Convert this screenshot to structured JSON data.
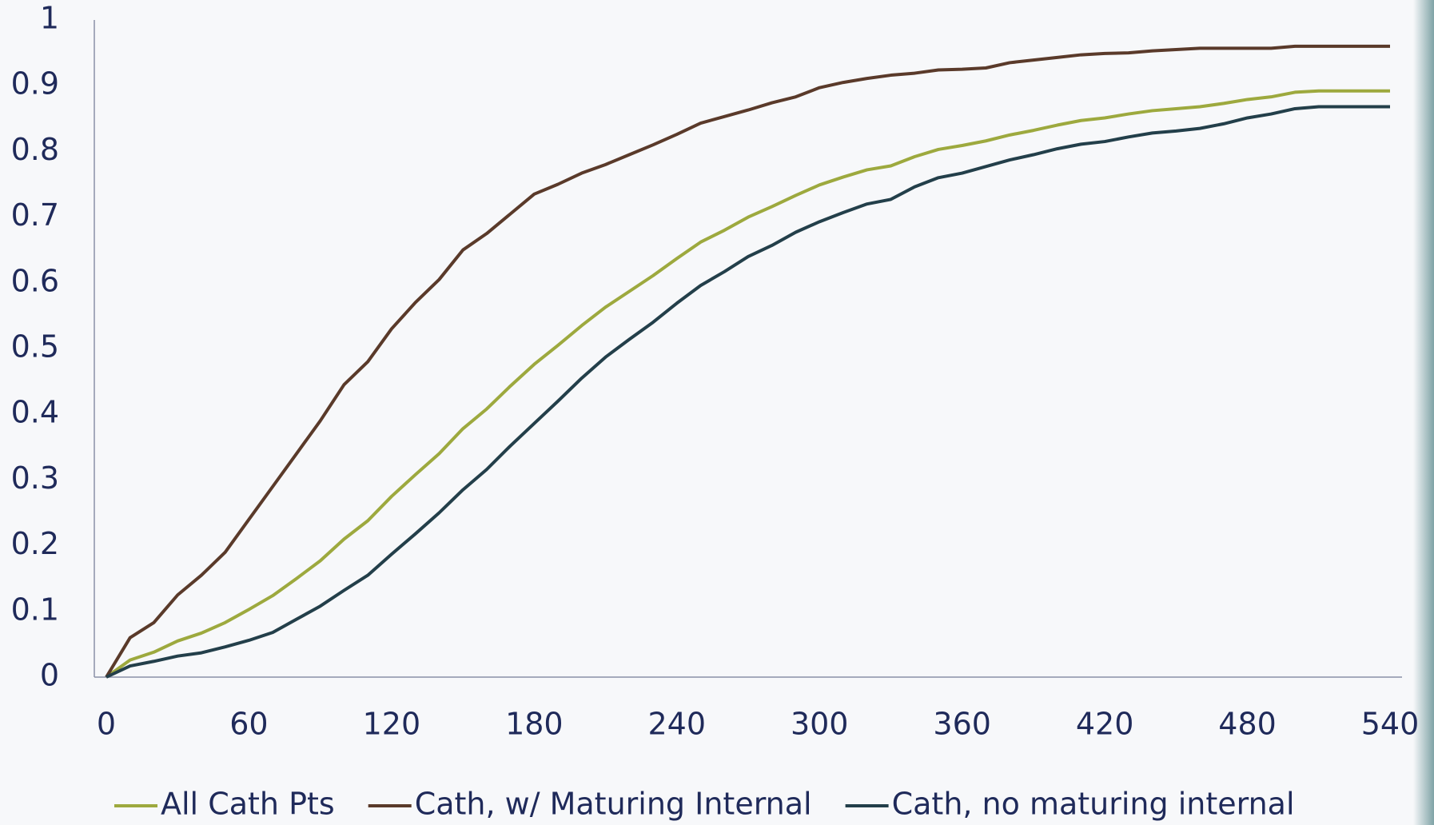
{
  "chart_data": {
    "type": "line",
    "x": [
      0,
      10,
      20,
      30,
      40,
      50,
      60,
      70,
      80,
      90,
      100,
      110,
      120,
      130,
      140,
      150,
      160,
      170,
      180,
      190,
      200,
      210,
      220,
      230,
      240,
      250,
      260,
      270,
      280,
      290,
      300,
      310,
      320,
      330,
      340,
      350,
      360,
      370,
      380,
      390,
      400,
      410,
      420,
      430,
      440,
      450,
      460,
      470,
      480,
      490,
      500,
      510,
      520,
      530,
      540
    ],
    "series": [
      {
        "name": "All Cath Pts",
        "color": "#9da93e",
        "values": [
          0,
          0.026,
          0.038,
          0.055,
          0.067,
          0.083,
          0.103,
          0.124,
          0.15,
          0.177,
          0.21,
          0.238,
          0.275,
          0.308,
          0.34,
          0.378,
          0.408,
          0.443,
          0.476,
          0.505,
          0.535,
          0.563,
          0.587,
          0.611,
          0.637,
          0.662,
          0.68,
          0.7,
          0.716,
          0.733,
          0.749,
          0.761,
          0.772,
          0.778,
          0.792,
          0.803,
          0.809,
          0.816,
          0.825,
          0.832,
          0.84,
          0.847,
          0.851,
          0.857,
          0.862,
          0.865,
          0.868,
          0.873,
          0.879,
          0.883,
          0.89,
          0.892,
          0.892,
          0.892,
          0.892
        ]
      },
      {
        "name": "Cath, w/ Maturing Internal",
        "color": "#5a3a2a",
        "values": [
          0,
          0.06,
          0.083,
          0.125,
          0.155,
          0.19,
          0.24,
          0.29,
          0.34,
          0.39,
          0.445,
          0.48,
          0.53,
          0.57,
          0.605,
          0.65,
          0.675,
          0.705,
          0.735,
          0.75,
          0.767,
          0.78,
          0.795,
          0.81,
          0.826,
          0.843,
          0.853,
          0.863,
          0.874,
          0.883,
          0.897,
          0.905,
          0.911,
          0.916,
          0.919,
          0.924,
          0.925,
          0.927,
          0.935,
          0.939,
          0.943,
          0.947,
          0.949,
          0.95,
          0.953,
          0.955,
          0.957,
          0.957,
          0.957,
          0.957,
          0.96,
          0.96,
          0.96,
          0.96,
          0.96
        ]
      },
      {
        "name": "Cath, no maturing internal",
        "color": "#233f4a",
        "values": [
          0,
          0.017,
          0.024,
          0.032,
          0.037,
          0.046,
          0.056,
          0.068,
          0.088,
          0.108,
          0.132,
          0.155,
          0.187,
          0.218,
          0.25,
          0.285,
          0.316,
          0.352,
          0.386,
          0.42,
          0.455,
          0.487,
          0.514,
          0.54,
          0.569,
          0.596,
          0.617,
          0.64,
          0.657,
          0.677,
          0.693,
          0.707,
          0.72,
          0.727,
          0.746,
          0.76,
          0.767,
          0.777,
          0.787,
          0.795,
          0.804,
          0.811,
          0.815,
          0.822,
          0.828,
          0.831,
          0.835,
          0.842,
          0.851,
          0.857,
          0.865,
          0.868,
          0.868,
          0.868,
          0.868
        ]
      }
    ],
    "xlim": [
      0,
      540
    ],
    "xticks": [
      0,
      60,
      120,
      180,
      240,
      300,
      360,
      420,
      480,
      540
    ],
    "ylim": [
      0,
      1
    ],
    "yticks": [
      0,
      0.1,
      0.2,
      0.3,
      0.4,
      0.5,
      0.6,
      0.7,
      0.8,
      0.9,
      1
    ],
    "legend": "bottom"
  }
}
